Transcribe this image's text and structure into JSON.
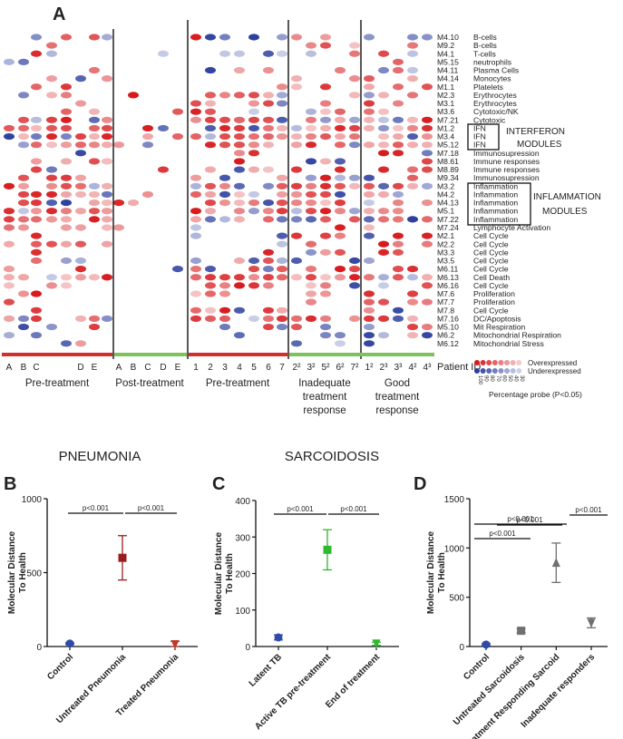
{
  "panelA": {
    "letter": "A",
    "modules": [
      {
        "id": "M4.10",
        "name": "B-cells"
      },
      {
        "id": "M9.2",
        "name": "B-cells"
      },
      {
        "id": "M4.1",
        "name": "T-cells"
      },
      {
        "id": "M5.15",
        "name": "neutrophils"
      },
      {
        "id": "M4.11",
        "name": "Plasma Cells"
      },
      {
        "id": "M4.14",
        "name": "Monocytes"
      },
      {
        "id": "M1.1",
        "name": "Platelets"
      },
      {
        "id": "M2.3",
        "name": "Erythrocytes"
      },
      {
        "id": "M3.1",
        "name": "Erythrocytes"
      },
      {
        "id": "M3.6",
        "name": "Cytotoxic/NK"
      },
      {
        "id": "M7.21",
        "name": "Cytotoxic"
      },
      {
        "id": "M1.2",
        "name": "IFN"
      },
      {
        "id": "M3.4",
        "name": "IFN"
      },
      {
        "id": "M5.12",
        "name": "IFN"
      },
      {
        "id": "M7.18",
        "name": "Immunosupression"
      },
      {
        "id": "M8.61",
        "name": "Immune responses"
      },
      {
        "id": "M8.89",
        "name": "Immune responses"
      },
      {
        "id": "M9.34",
        "name": "Immunosupression"
      },
      {
        "id": "M3.2",
        "name": "Inflammation"
      },
      {
        "id": "M4.2",
        "name": "Inflammation"
      },
      {
        "id": "M4.13",
        "name": "Inflammation"
      },
      {
        "id": "M5.1",
        "name": "Inflammation"
      },
      {
        "id": "M7.22",
        "name": "Inflammation"
      },
      {
        "id": "M7.24",
        "name": "Lymphocyte Activation"
      },
      {
        "id": "M2.1",
        "name": "Cell Cycle"
      },
      {
        "id": "M2.2",
        "name": "Cell Cycle"
      },
      {
        "id": "M3.3",
        "name": "Cell Cycle"
      },
      {
        "id": "M3.5",
        "name": "Cell Cycle"
      },
      {
        "id": "M6.11",
        "name": "Cell Cycle"
      },
      {
        "id": "M6.13",
        "name": "Cell Death"
      },
      {
        "id": "M6.16",
        "name": "Cell Cycle"
      },
      {
        "id": "M7.6",
        "name": "Proliferation"
      },
      {
        "id": "M7.7",
        "name": "Proliferation"
      },
      {
        "id": "M7.8",
        "name": "Cell Cycle"
      },
      {
        "id": "M7.16",
        "name": "DC/Apoptosis"
      },
      {
        "id": "M5.10",
        "name": "Mit Respiration"
      },
      {
        "id": "M6.2",
        "name": "Mitochondrial Respiration"
      },
      {
        "id": "M6.12",
        "name": "Mitochondrial Stress"
      }
    ],
    "pneumonia_pre_ids": [
      "A",
      "B",
      "C",
      "",
      "",
      "D",
      "E",
      ""
    ],
    "pneumonia_post_ids": [
      "A",
      "B",
      "C",
      "D",
      "E"
    ],
    "sarc_pre_ids": [
      "1",
      "2",
      "3",
      "4",
      "5",
      "6",
      "7"
    ],
    "sarc_inadequate_ids": [
      "2²",
      "3²",
      "5²",
      "6²",
      "7²"
    ],
    "sarc_good_ids": [
      "1²",
      "2³",
      "3³",
      "4²",
      "4³"
    ],
    "group_labels": {
      "pneumonia_pre": "Pre-treatment",
      "pneumonia_post": "Post-treatment",
      "sarc_pre": "Pre-treatment",
      "sarc_inadequate": [
        "Inadequate",
        "treatment",
        "response"
      ],
      "sarc_good": [
        "Good",
        "treatment",
        "response"
      ]
    },
    "patient_id_label": "Patient ID",
    "disease_labels": {
      "pneumonia": "PNEUMONIA",
      "sarcoidosis": "SARCOIDOSIS"
    },
    "box_labels": {
      "interferon": "INTERFERON",
      "modules": "MODULES",
      "inflammation": "INFLAMMATION",
      "modules2": "MODULES"
    },
    "legend": {
      "over": "Overexpressed",
      "under": "Underexpressed",
      "scale": [
        "100",
        "90",
        "80",
        "70",
        "60",
        "50",
        "40",
        "30"
      ],
      "caption": "Percentage probe (P<0.05)"
    },
    "colors": {
      "over": "#d7191c",
      "under": "#2c3e9e",
      "pre_bar": "#d32f2f",
      "post_bar": "#7cc35a",
      "sarc_bar_green": "#7cc35a"
    }
  },
  "panelB": {
    "letter": "B",
    "chart_data": {
      "type": "scatter",
      "categories": [
        "Control",
        "Untreated Pneumonia",
        "Treated Pneumonia"
      ],
      "values": [
        20,
        600,
        15
      ],
      "errors": [
        [
          15,
          25
        ],
        [
          450,
          750
        ],
        [
          0,
          35
        ]
      ],
      "ylabel": "Molecular Distance To Health",
      "yticks": [
        "0",
        "500",
        "1000"
      ],
      "ylim": [
        0,
        1000
      ],
      "colors": [
        "#2f4aa8",
        "#9b1c1c",
        "#c0392b"
      ],
      "markers": [
        "circle",
        "square",
        "triangle-down"
      ],
      "annotations": [
        "p<0.001",
        "p<0.001"
      ]
    }
  },
  "panelC": {
    "letter": "C",
    "chart_data": {
      "type": "scatter",
      "categories": [
        "Latent TB",
        "Active TB pre-treatment",
        "End of treatment"
      ],
      "values": [
        25,
        265,
        8
      ],
      "errors": [
        [
          18,
          32
        ],
        [
          210,
          320
        ],
        [
          3,
          12
        ]
      ],
      "ylabel": "Molecular Distance To Health",
      "yticks": [
        "0",
        "100",
        "200",
        "300",
        "400"
      ],
      "ylim": [
        0,
        400
      ],
      "colors": [
        "#2f4aa8",
        "#2eb82e",
        "#2eb82e"
      ],
      "markers": [
        "circle",
        "square",
        "triangle-down"
      ],
      "annotations": [
        "p<0.001",
        "p<0.001"
      ]
    }
  },
  "panelD": {
    "letter": "D",
    "chart_data": {
      "type": "scatter",
      "categories": [
        "Control",
        "Untreated Sarcoidosis",
        "Treatment Responding Sarcoid",
        "Inadequate responders"
      ],
      "values": [
        20,
        160,
        850,
        240
      ],
      "errors": [
        [
          10,
          30
        ],
        [
          140,
          180
        ],
        [
          650,
          1050
        ],
        [
          190,
          290
        ]
      ],
      "ylabel": "Molecular Distance To Health",
      "yticks": [
        "0",
        "500",
        "1000",
        "1500"
      ],
      "ylim": [
        0,
        1500
      ],
      "colors": [
        "#2f4aa8",
        "#707070",
        "#707070",
        "#707070"
      ],
      "markers": [
        "circle",
        "square",
        "triangle-up",
        "triangle-down"
      ],
      "annotations": [
        "p<0.001",
        "p<0.001",
        "p<0.001",
        "p<0.001"
      ]
    }
  }
}
